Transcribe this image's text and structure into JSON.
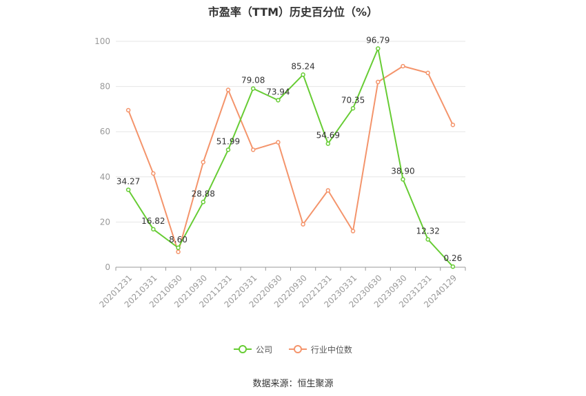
{
  "chart_data": {
    "type": "line",
    "title": "市盈率（TTM）历史百分位（%）",
    "categories": [
      "20201231",
      "20210331",
      "20210630",
      "20210930",
      "20211231",
      "20220331",
      "20220630",
      "20220930",
      "20221231",
      "20230331",
      "20230630",
      "20230930",
      "20231231",
      "20240129"
    ],
    "ylim": [
      0,
      100
    ],
    "yticks": [
      0,
      20,
      40,
      60,
      80,
      100
    ],
    "grid": true,
    "legend_position": "bottom",
    "series": [
      {
        "name": "公司",
        "color": "#66cc33",
        "show_labels": true,
        "values": [
          34.27,
          16.82,
          8.6,
          28.88,
          51.99,
          79.08,
          73.94,
          85.24,
          54.69,
          70.35,
          96.79,
          38.9,
          12.32,
          0.26
        ],
        "labels": [
          "34.27",
          "16.82",
          "8.60",
          "28.88",
          "51.99",
          "79.08",
          "73.94",
          "85.24",
          "54.69",
          "70.35",
          "96.79",
          "38.90",
          "12.32",
          "0.26"
        ]
      },
      {
        "name": "行业中位数",
        "color": "#f4946b",
        "show_labels": false,
        "values": [
          69.5,
          41.5,
          6.8,
          46.5,
          78.5,
          52.0,
          55.3,
          19.0,
          34.0,
          16.0,
          82.0,
          89.0,
          86.0,
          63.0
        ]
      }
    ]
  },
  "source": "数据来源：恒生聚源"
}
